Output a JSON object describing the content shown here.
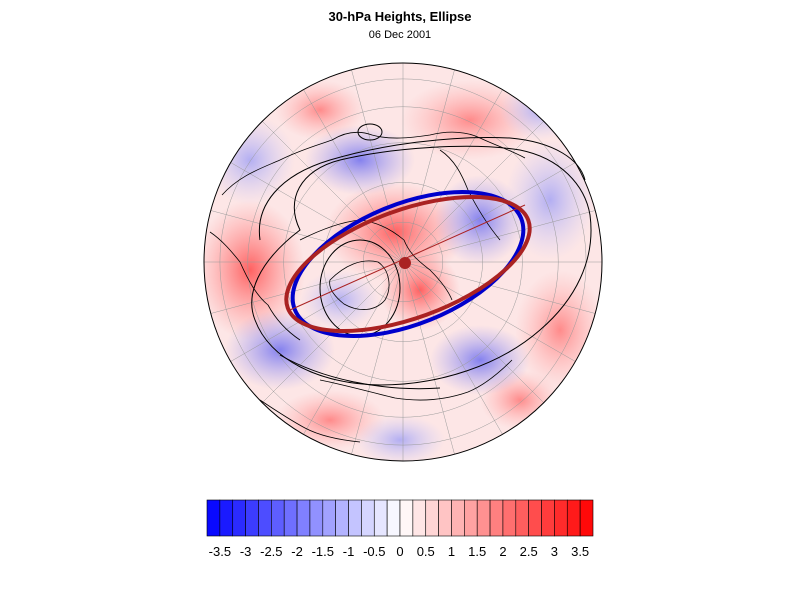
{
  "figure": {
    "title": "30-hPa Heights, Ellipse",
    "subtitle": "06 Dec 2001"
  },
  "colorbar": {
    "levels": [
      "-3.5",
      "-3",
      "-2.5",
      "-2",
      "-1.5",
      "-1",
      "-0.5",
      "0",
      "0.5",
      "1",
      "1.5",
      "2",
      "2.5",
      "3",
      "3.5"
    ],
    "min": -3.75,
    "max": 3.75,
    "bins": 30,
    "neg_color": "#0000ff",
    "zero_color": "#ffffff",
    "pos_color": "#ff0000"
  },
  "map": {
    "projection": "orthographic-north-polar",
    "graticule": true,
    "overlays": [
      {
        "name": "observed-vortex-ellipse",
        "color": "#0000cc"
      },
      {
        "name": "fitted-vortex-ellipse",
        "color": "#aa2222"
      },
      {
        "name": "height-contours",
        "color": "#000000"
      }
    ]
  }
}
